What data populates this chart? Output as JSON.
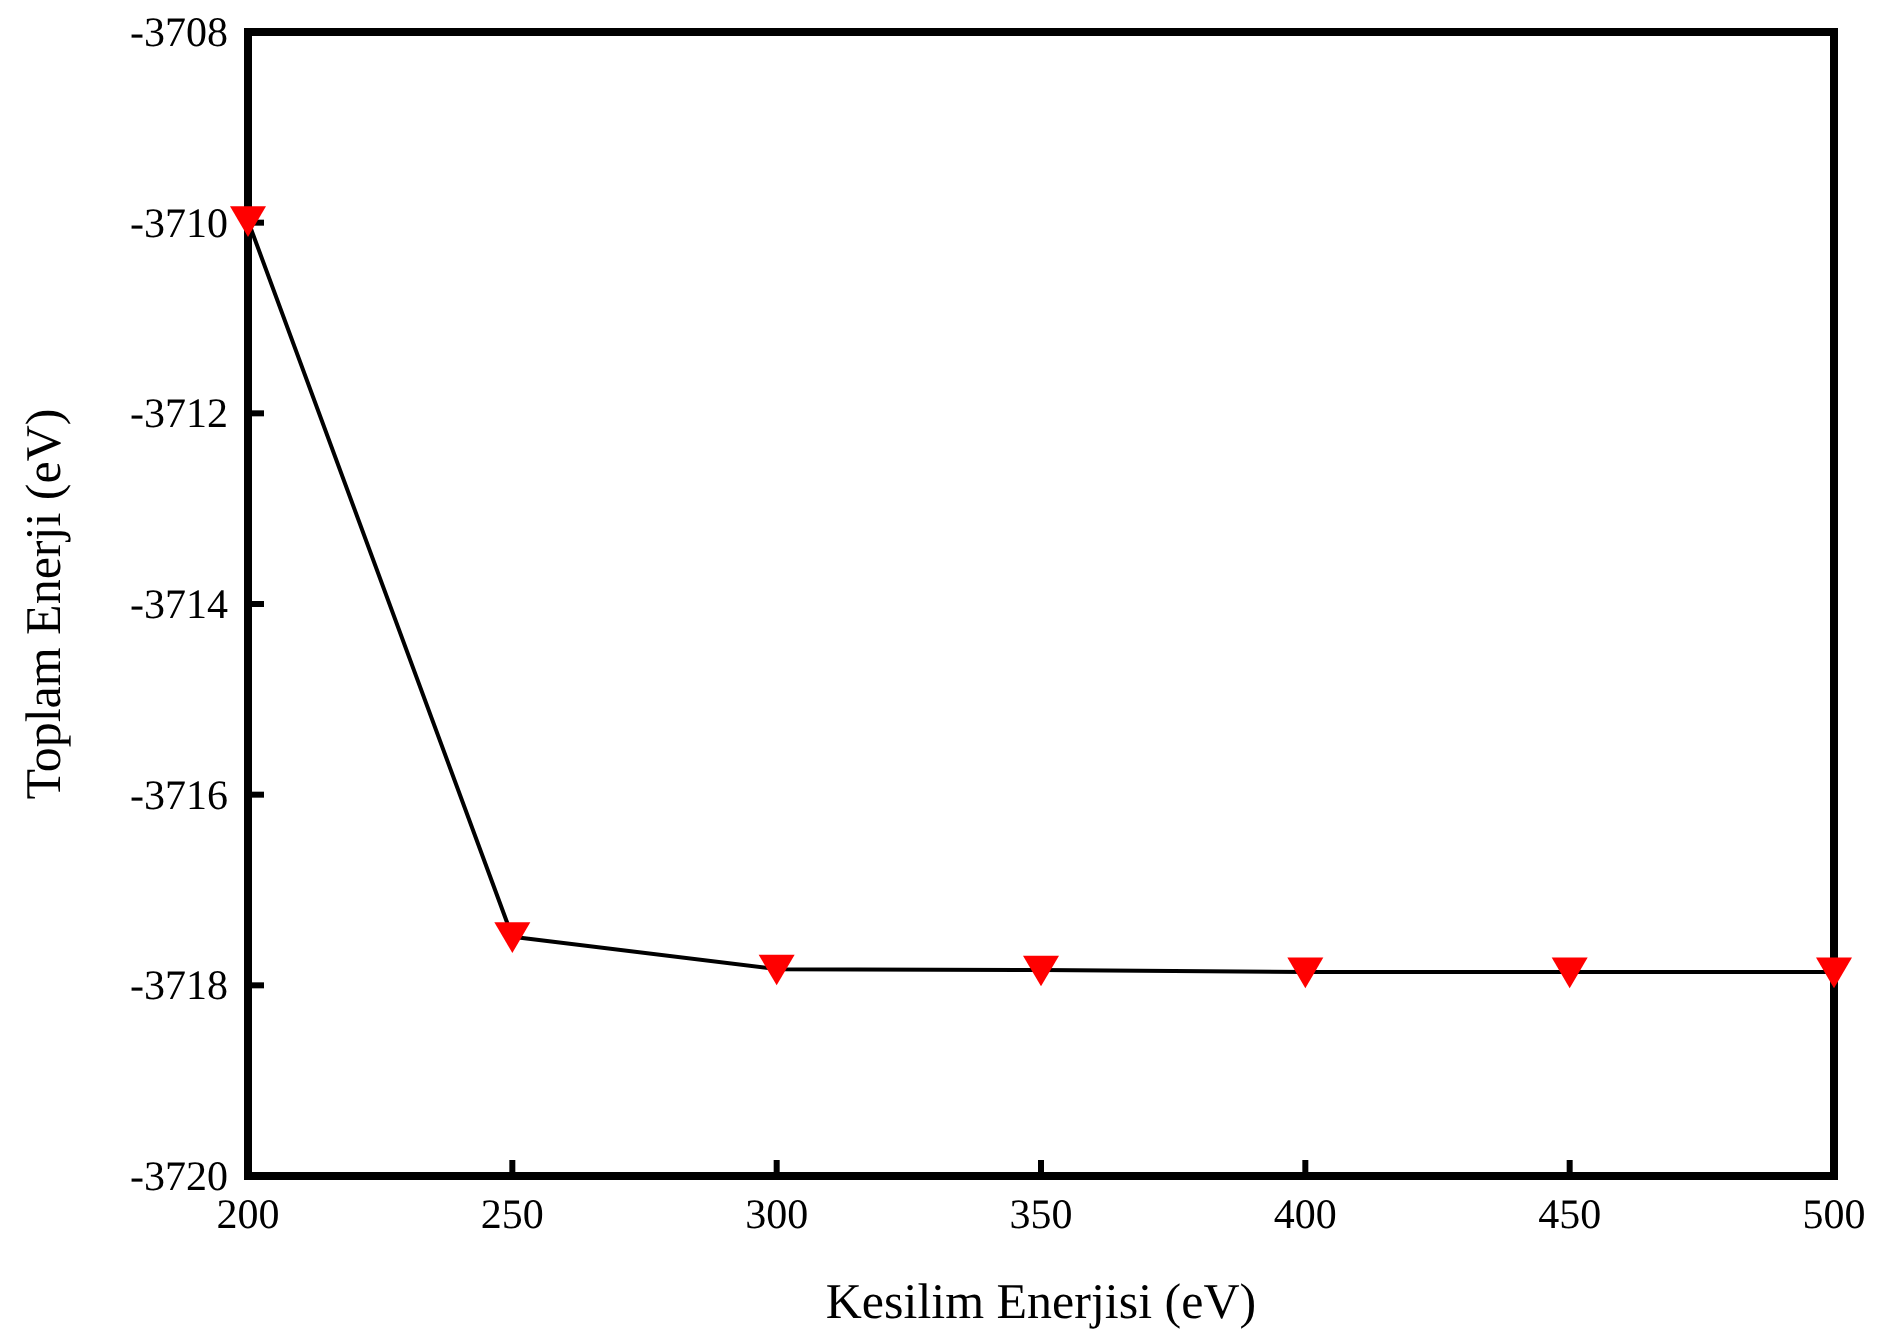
{
  "chart_data": {
    "type": "line",
    "xlabel": "Kesilim Enerjisi (eV)",
    "ylabel": "Toplam Enerji (eV)",
    "x": [
      200,
      250,
      300,
      350,
      400,
      450,
      500
    ],
    "series": [
      {
        "color": "#ff0000",
        "values": [
          -3709.98,
          -3717.49,
          -3717.83,
          -3717.84,
          -3717.86,
          -3717.86,
          -3717.86
        ]
      }
    ],
    "xlim": [
      200,
      500
    ],
    "xticks": [
      200,
      250,
      300,
      350,
      400,
      450,
      500
    ],
    "ylim": [
      -3720,
      -3708
    ],
    "yticks": [
      -3720,
      -3718,
      -3716,
      -3714,
      -3712,
      -3710,
      -3708
    ],
    "grid": false,
    "marker": "triangle",
    "line_style": "solid"
  }
}
